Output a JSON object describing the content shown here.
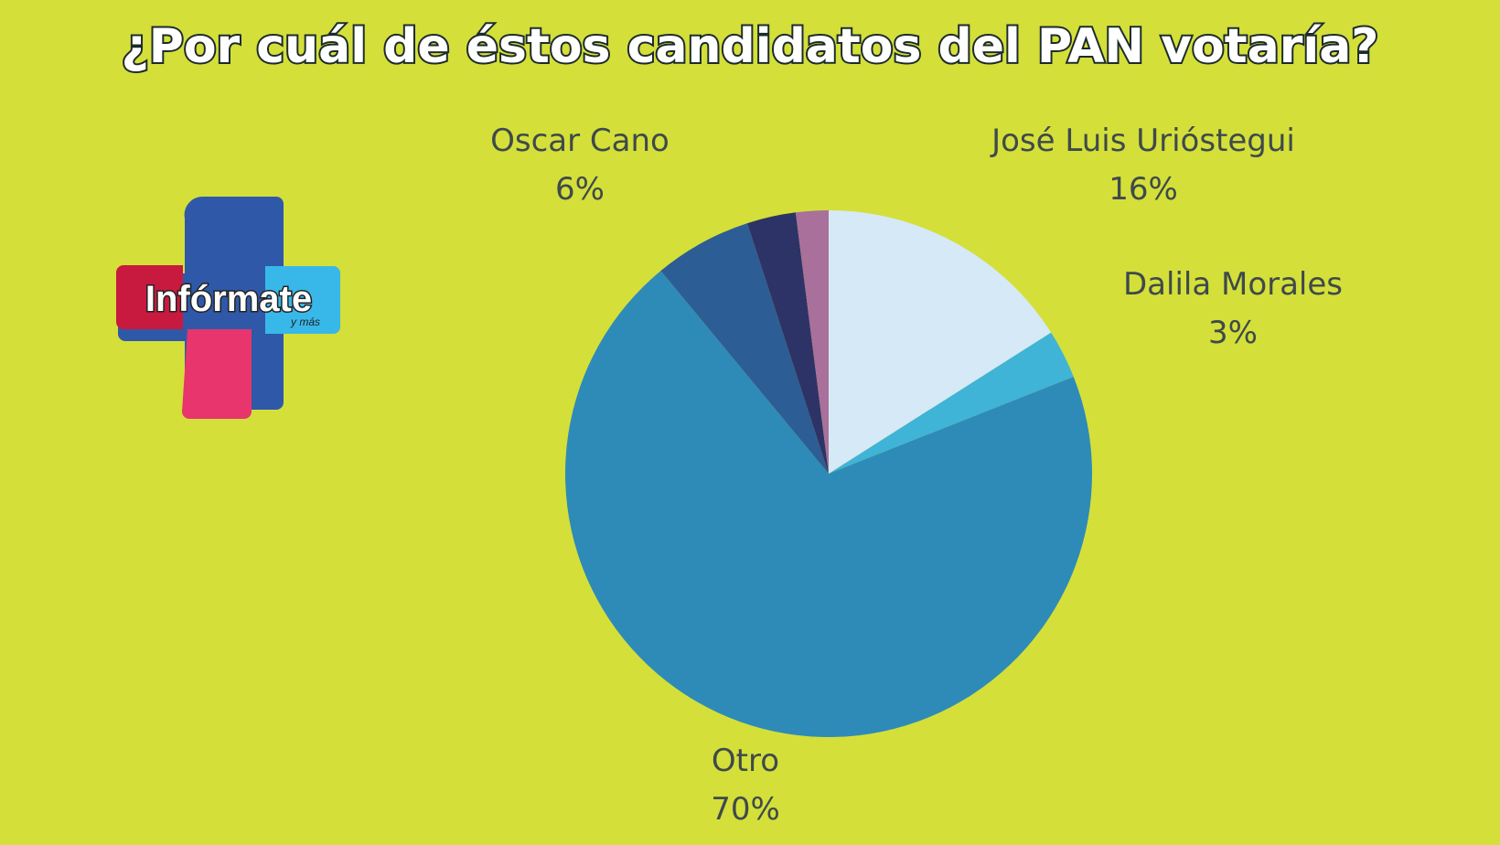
{
  "chart_data": {
    "type": "pie",
    "title": "¿Por cuál de éstos candidatos del PAN votaría?",
    "categories": [
      "José Luis Urióstegui",
      "Dalila Morales",
      "Otro",
      "Oscar Cano",
      null,
      null
    ],
    "values": [
      16,
      3,
      70,
      6,
      3,
      2
    ],
    "value_labels": [
      "16%",
      "3%",
      "70%",
      "6%",
      null,
      null
    ],
    "colors": [
      "#d5e9f6",
      "#3fb4d6",
      "#2e8bb8",
      "#2d5d95",
      "#2d3366",
      "#a8709a"
    ]
  },
  "logo": {
    "text": "Infórmate",
    "subtext": "y más"
  }
}
